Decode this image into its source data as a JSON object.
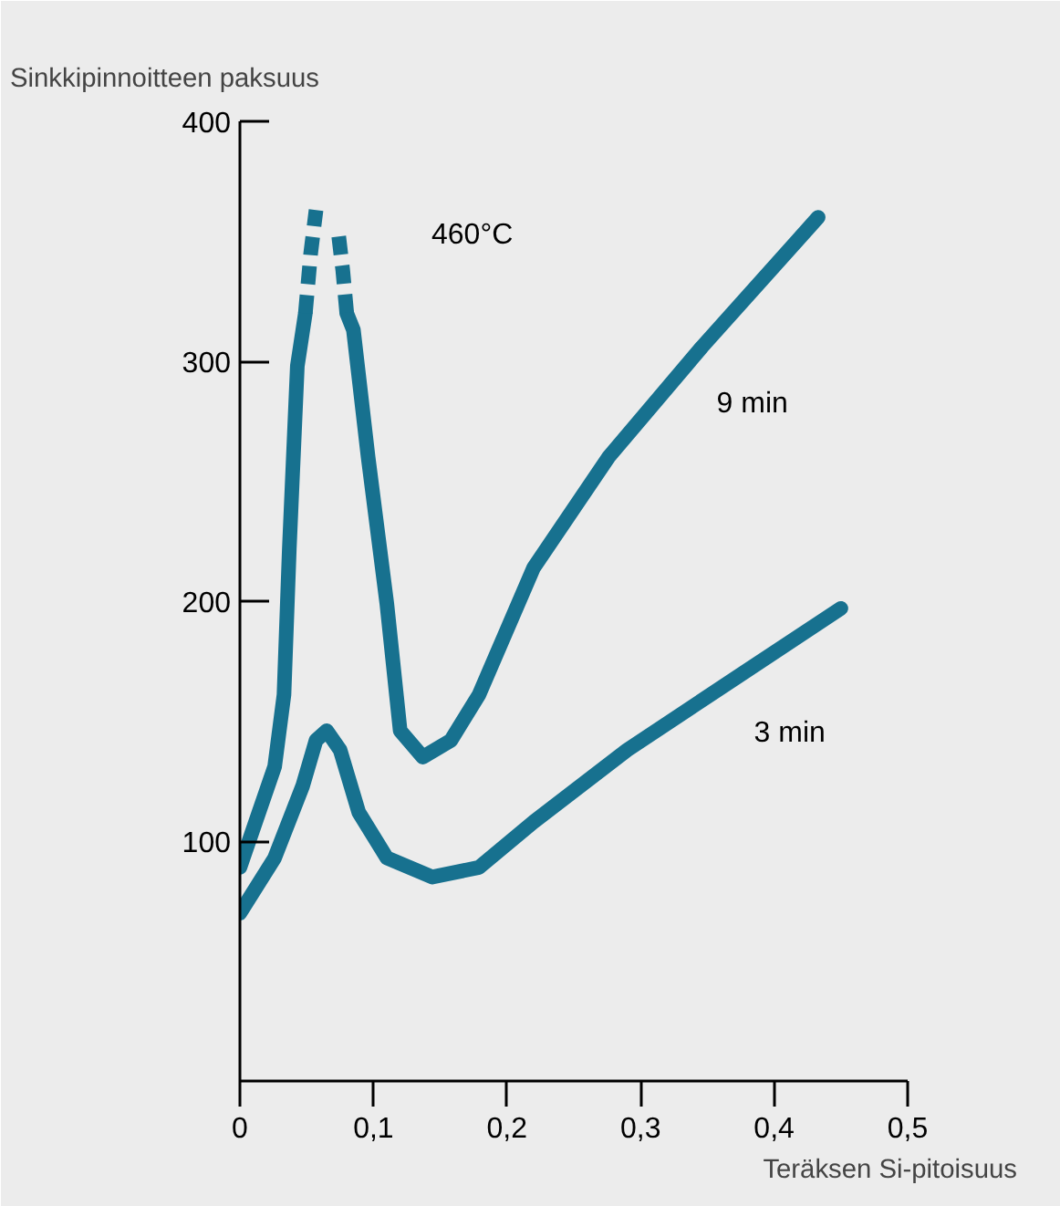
{
  "chart_data": {
    "type": "line",
    "xlabel": "Teräksen Si-pitoisuus",
    "ylabel": "Sinkkipinnoitteen paksuus",
    "annotations": [
      "460°C"
    ],
    "xlim": [
      0,
      0.5
    ],
    "ylim": [
      0,
      400
    ],
    "xticks": [
      {
        "value": 0,
        "label": "0"
      },
      {
        "value": 0.1,
        "label": "0,1"
      },
      {
        "value": 0.2,
        "label": "0,2"
      },
      {
        "value": 0.3,
        "label": "0,3"
      },
      {
        "value": 0.4,
        "label": "0,4"
      },
      {
        "value": 0.5,
        "label": "0,5"
      }
    ],
    "yticks": [
      100,
      200,
      300,
      400
    ],
    "grid": false,
    "marker": "none",
    "series": [
      {
        "name": "9 min",
        "color": "#17718f",
        "line_style": "solid",
        "x": [
          0,
          0.026,
          0.033,
          0.037,
          0.043,
          0.049,
          null,
          0.08,
          0.085,
          0.096,
          0.11,
          0.12,
          0.137,
          0.158,
          0.179,
          0.22,
          0.276,
          0.346,
          0.433
        ],
        "values": [
          89,
          131,
          161,
          222,
          298,
          320,
          null,
          320,
          313,
          260,
          199,
          146,
          135,
          142,
          161,
          214,
          260,
          306,
          360
        ]
      },
      {
        "color": "#17718f",
        "line_style": "dashed",
        "x": [
          0.049,
          0.053,
          0.057
        ],
        "values": [
          320,
          345,
          363
        ]
      },
      {
        "color": "#17718f",
        "line_style": "dashed",
        "x": [
          0.074,
          0.077,
          0.08
        ],
        "values": [
          352,
          338,
          320
        ]
      },
      {
        "name": "3 min",
        "color": "#17718f",
        "line_style": "solid",
        "x": [
          0,
          0.026,
          0.047,
          0.057,
          0.065,
          0.075,
          0.089,
          0.11,
          0.144,
          0.179,
          0.22,
          0.29,
          0.374,
          0.45
        ],
        "values": [
          70,
          93,
          123,
          142,
          146,
          138,
          112,
          93,
          85,
          89,
          108,
          138,
          169,
          197
        ]
      }
    ]
  }
}
